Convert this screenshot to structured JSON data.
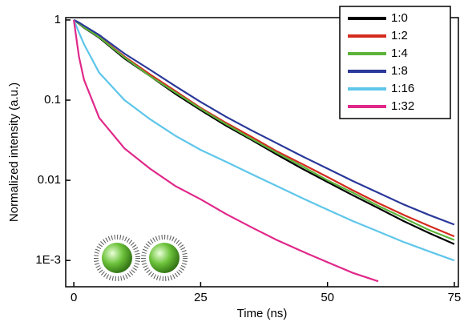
{
  "chart_data": {
    "type": "line",
    "xlabel": "Time (ns)",
    "ylabel": "Normalized intensity (a.u.)",
    "x": [
      0,
      1,
      2,
      5,
      10,
      15,
      20,
      25,
      30,
      35,
      40,
      45,
      50,
      55,
      60,
      65,
      70,
      75
    ],
    "series": [
      {
        "name": "1:0",
        "color": "#000000",
        "values": [
          1,
          0.9,
          0.8,
          0.6,
          0.33,
          0.2,
          0.12,
          0.075,
          0.048,
          0.032,
          0.021,
          0.014,
          0.0095,
          0.0065,
          0.0045,
          0.0031,
          0.0022,
          0.0016
        ]
      },
      {
        "name": "1:2",
        "color": "#d42a1e",
        "values": [
          1,
          0.92,
          0.82,
          0.62,
          0.35,
          0.21,
          0.13,
          0.08,
          0.052,
          0.035,
          0.023,
          0.016,
          0.011,
          0.0075,
          0.0052,
          0.0037,
          0.0027,
          0.002
        ]
      },
      {
        "name": "1:4",
        "color": "#5cb33a",
        "values": [
          1,
          0.91,
          0.81,
          0.61,
          0.34,
          0.2,
          0.125,
          0.078,
          0.05,
          0.033,
          0.022,
          0.015,
          0.01,
          0.007,
          0.0048,
          0.0034,
          0.0024,
          0.0018
        ]
      },
      {
        "name": "1:8",
        "color": "#2a3899",
        "values": [
          1,
          0.93,
          0.85,
          0.65,
          0.38,
          0.24,
          0.15,
          0.095,
          0.062,
          0.042,
          0.029,
          0.02,
          0.014,
          0.0098,
          0.007,
          0.005,
          0.0037,
          0.0028
        ]
      },
      {
        "name": "1:16",
        "color": "#5ec6ea",
        "values": [
          1,
          0.7,
          0.5,
          0.22,
          0.1,
          0.058,
          0.036,
          0.024,
          0.017,
          0.012,
          0.0085,
          0.006,
          0.0043,
          0.0031,
          0.0023,
          0.0017,
          0.0013,
          0.001
        ]
      },
      {
        "name": "1:32",
        "color": "#e0288a",
        "values": [
          1,
          0.35,
          0.18,
          0.06,
          0.025,
          0.014,
          0.0085,
          0.0058,
          0.0038,
          0.0026,
          0.0018,
          0.0013,
          0.00095,
          0.0007,
          0.00055,
          null,
          null,
          null
        ]
      }
    ],
    "xlim": [
      -1.6,
      75.8
    ],
    "xticks": [
      0,
      25,
      50,
      75
    ],
    "ylim": [
      0.00047,
      1.07
    ],
    "yscale": "log",
    "yticks": [
      1,
      0.1,
      0.01,
      {
        "value": 0.001,
        "label": "1E-3"
      }
    ],
    "legend": "upper right"
  }
}
